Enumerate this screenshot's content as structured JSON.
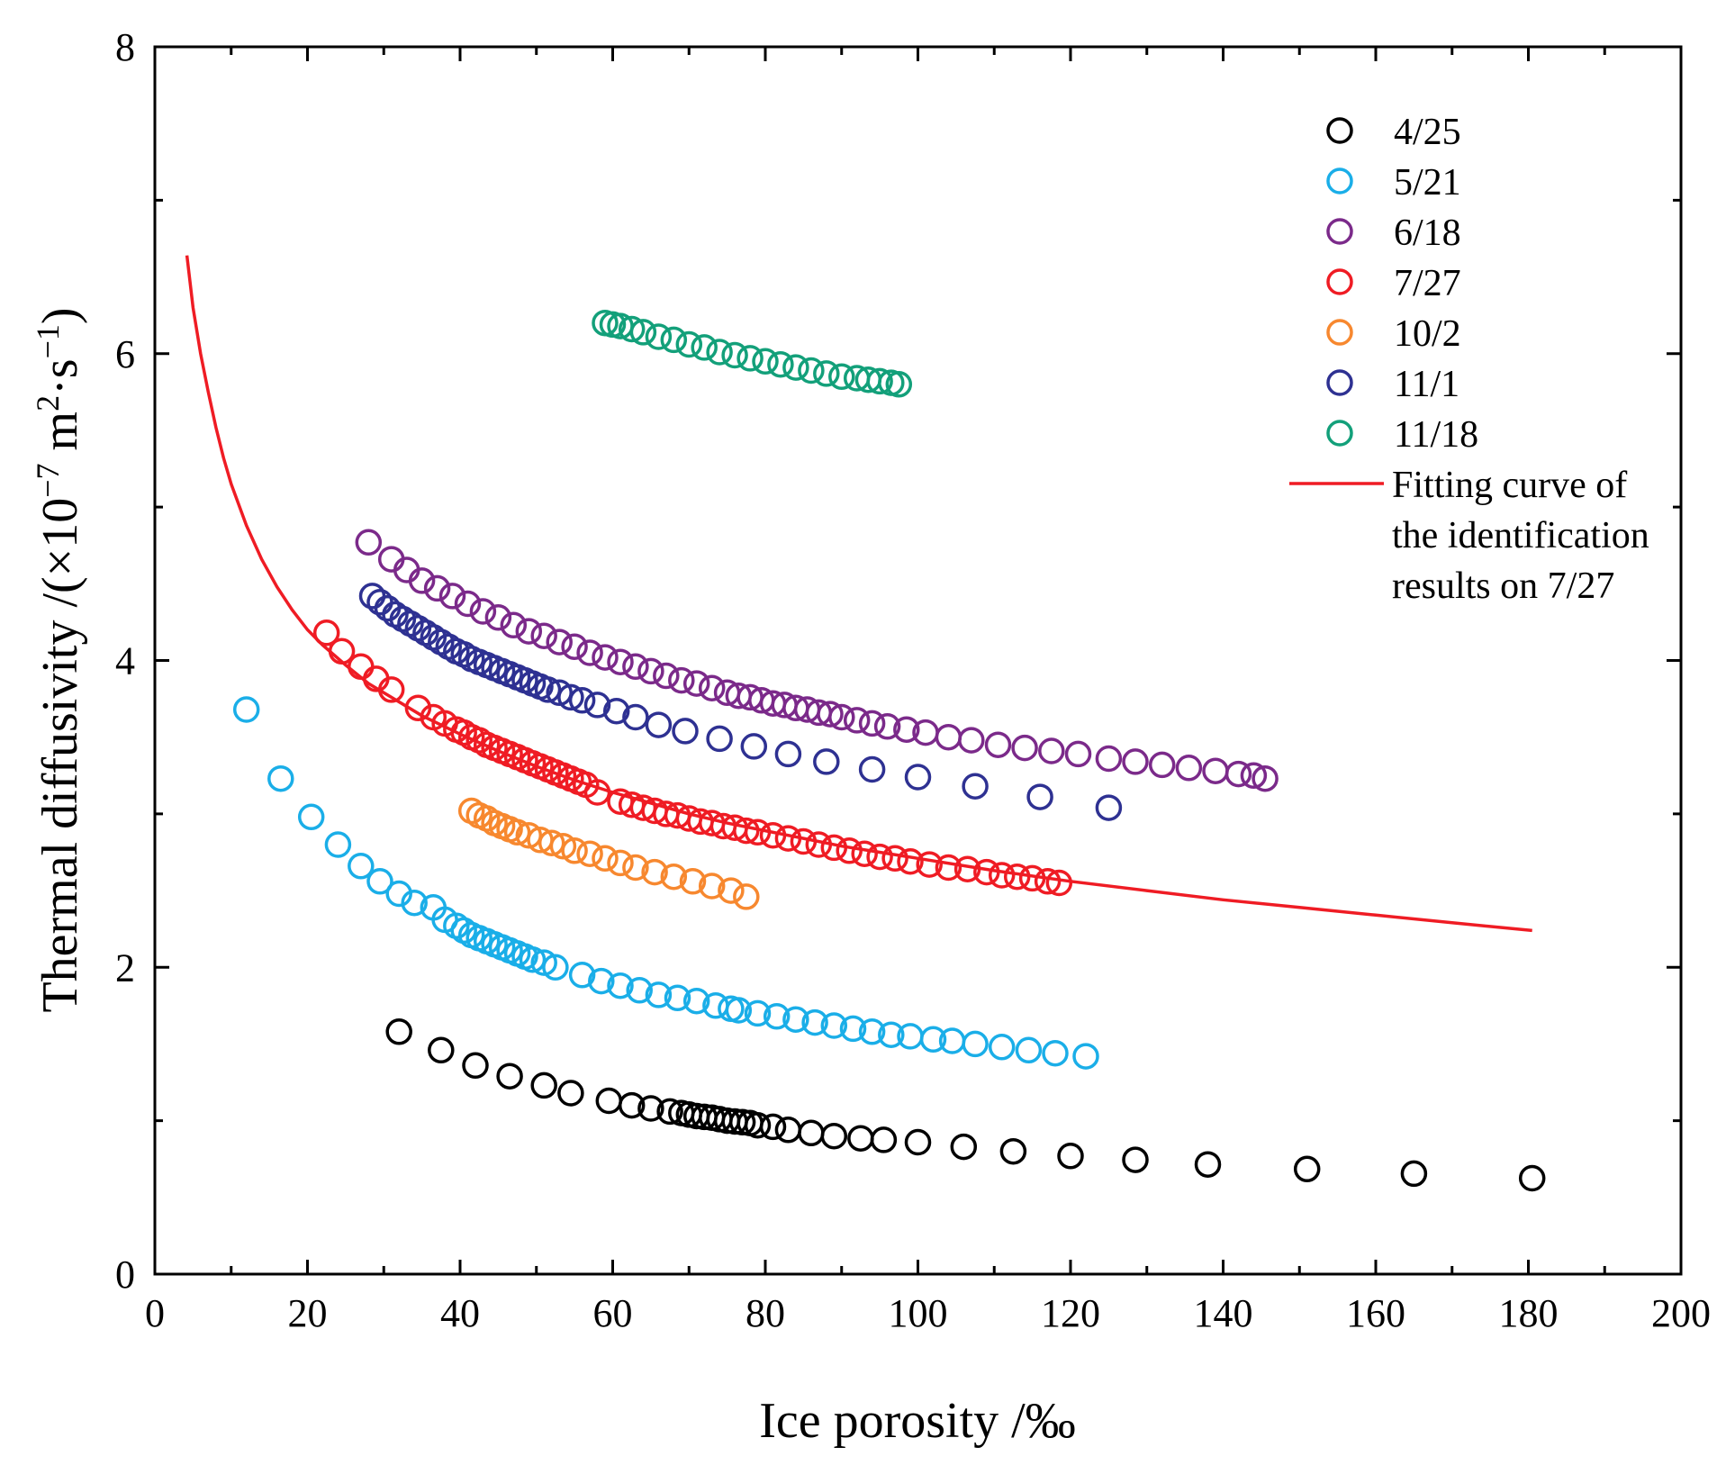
{
  "chart_data": {
    "type": "scatter",
    "title": "",
    "xlabel": "Ice porosity /‰",
    "ylabel_main": "Thermal diffusivity /(×10",
    "ylabel_exp": "−7",
    "ylabel_unit_m": " m",
    "ylabel_exp2": "2",
    "ylabel_tail": "·s",
    "ylabel_exp3": "−1",
    "ylabel_close": ")",
    "xlim": [
      0,
      200
    ],
    "ylim": [
      0,
      8
    ],
    "xticks": [
      0,
      20,
      40,
      60,
      80,
      100,
      120,
      140,
      160,
      180,
      200
    ],
    "yticks": [
      0,
      2,
      4,
      6,
      8
    ],
    "legend_position": "top-right",
    "series": [
      {
        "name": "4/25",
        "color": "#000000",
        "x": [
          32,
          37.5,
          42,
          46.5,
          51,
          54.5,
          59.5,
          62.5,
          65,
          67.5,
          69,
          70,
          71,
          72,
          73,
          74,
          75,
          76,
          77,
          78,
          79,
          81,
          83,
          86,
          89,
          92.5,
          95.5,
          100,
          106,
          112.5,
          120,
          128.5,
          138,
          151,
          165,
          180.5
        ],
        "y": [
          1.58,
          1.46,
          1.36,
          1.29,
          1.23,
          1.18,
          1.13,
          1.1,
          1.08,
          1.06,
          1.05,
          1.04,
          1.03,
          1.025,
          1.02,
          1.01,
          1.0,
          0.995,
          0.99,
          0.985,
          0.97,
          0.96,
          0.94,
          0.92,
          0.9,
          0.885,
          0.875,
          0.86,
          0.83,
          0.8,
          0.77,
          0.745,
          0.715,
          0.685,
          0.655,
          0.625
        ]
      },
      {
        "name": "5/21",
        "color": "#1aaee8",
        "x": [
          12,
          16.5,
          20.5,
          24,
          27,
          29.5,
          32,
          34,
          36.5,
          38,
          39.5,
          40.5,
          41.5,
          42.5,
          43.5,
          44.5,
          45.5,
          46.5,
          47.5,
          48.5,
          49.5,
          51,
          52.5,
          56,
          58.5,
          61,
          63.5,
          66,
          68.5,
          71,
          73.5,
          75.5,
          76.5,
          79,
          81.5,
          84,
          86.5,
          89,
          91.5,
          94,
          96.5,
          99,
          102,
          104.5,
          107.5,
          111,
          114.5,
          118,
          122
        ],
        "y": [
          3.68,
          3.23,
          2.98,
          2.8,
          2.66,
          2.56,
          2.48,
          2.42,
          2.39,
          2.31,
          2.27,
          2.24,
          2.21,
          2.19,
          2.17,
          2.15,
          2.13,
          2.11,
          2.09,
          2.07,
          2.05,
          2.03,
          2.0,
          1.95,
          1.91,
          1.88,
          1.85,
          1.82,
          1.8,
          1.78,
          1.75,
          1.73,
          1.72,
          1.7,
          1.68,
          1.66,
          1.64,
          1.62,
          1.6,
          1.58,
          1.56,
          1.55,
          1.53,
          1.52,
          1.5,
          1.48,
          1.46,
          1.44,
          1.42
        ]
      },
      {
        "name": "6/18",
        "color": "#7b2a8a",
        "x": [
          28,
          31,
          33,
          35,
          37,
          39,
          41,
          43,
          45,
          47,
          49,
          51,
          53,
          55,
          57,
          59,
          61,
          63,
          65,
          67,
          69,
          71,
          73,
          75,
          76.5,
          78,
          79.5,
          81,
          82.5,
          84,
          85.5,
          87,
          88.5,
          90,
          92,
          94,
          96,
          98.5,
          101,
          104,
          107,
          110.5,
          114,
          117.5,
          121,
          125,
          128.5,
          132,
          135.5,
          139,
          142,
          144,
          145.5
        ],
        "y": [
          4.77,
          4.66,
          4.59,
          4.52,
          4.47,
          4.42,
          4.37,
          4.32,
          4.28,
          4.23,
          4.19,
          4.16,
          4.12,
          4.09,
          4.05,
          4.02,
          3.99,
          3.96,
          3.93,
          3.9,
          3.87,
          3.85,
          3.82,
          3.79,
          3.77,
          3.76,
          3.74,
          3.72,
          3.71,
          3.69,
          3.68,
          3.66,
          3.65,
          3.63,
          3.61,
          3.59,
          3.57,
          3.55,
          3.53,
          3.5,
          3.48,
          3.45,
          3.43,
          3.41,
          3.39,
          3.36,
          3.34,
          3.32,
          3.3,
          3.28,
          3.26,
          3.25,
          3.23
        ]
      },
      {
        "name": "7/27",
        "color": "#ef1c24",
        "x": [
          22.5,
          24.5,
          27,
          29,
          31,
          34.5,
          36.5,
          38,
          39.5,
          40.5,
          41.5,
          42.5,
          43.5,
          44.5,
          45.5,
          46.5,
          47.5,
          48.5,
          49.5,
          50.5,
          51.5,
          52.5,
          53.5,
          54.5,
          55.5,
          56.5,
          58,
          61,
          62.5,
          64,
          65.5,
          67,
          68.5,
          70,
          71.5,
          73,
          74.5,
          76,
          77.5,
          79,
          81,
          83,
          85,
          87,
          89,
          91,
          93,
          95,
          97,
          99,
          101.5,
          104,
          106.5,
          109,
          111,
          113,
          115,
          117,
          118.5
        ],
        "y": [
          4.18,
          4.06,
          3.96,
          3.88,
          3.81,
          3.69,
          3.63,
          3.59,
          3.55,
          3.53,
          3.5,
          3.48,
          3.45,
          3.43,
          3.41,
          3.39,
          3.37,
          3.35,
          3.33,
          3.31,
          3.29,
          3.27,
          3.25,
          3.23,
          3.21,
          3.19,
          3.14,
          3.08,
          3.06,
          3.04,
          3.02,
          3.0,
          2.99,
          2.97,
          2.95,
          2.94,
          2.92,
          2.91,
          2.89,
          2.88,
          2.86,
          2.84,
          2.82,
          2.8,
          2.78,
          2.76,
          2.74,
          2.72,
          2.71,
          2.69,
          2.67,
          2.65,
          2.64,
          2.62,
          2.6,
          2.59,
          2.58,
          2.56,
          2.55
        ]
      },
      {
        "name": "10/2",
        "color": "#f7882f",
        "x": [
          41.5,
          42.5,
          43.5,
          44.5,
          45.5,
          46.5,
          47.5,
          49,
          50.5,
          52,
          53.5,
          55,
          57,
          59,
          61,
          63,
          65.5,
          68,
          70.5,
          73,
          75.5,
          77.5
        ],
        "y": [
          3.02,
          2.99,
          2.97,
          2.94,
          2.92,
          2.9,
          2.88,
          2.86,
          2.83,
          2.81,
          2.79,
          2.76,
          2.74,
          2.71,
          2.68,
          2.65,
          2.62,
          2.59,
          2.56,
          2.53,
          2.5,
          2.46
        ]
      },
      {
        "name": "11/1",
        "color": "#2e3192",
        "x": [
          28.5,
          29.5,
          30.5,
          31.5,
          32.5,
          33.5,
          34.5,
          35.5,
          36.5,
          37.5,
          38.5,
          39.5,
          40.5,
          41.5,
          42.5,
          43.5,
          44.5,
          45.5,
          46.5,
          47.5,
          48.5,
          49.5,
          50.5,
          51.5,
          53,
          54.5,
          56,
          58,
          60.5,
          63,
          66,
          69.5,
          74,
          78.5,
          83,
          88,
          94,
          100,
          107.5,
          116,
          125
        ],
        "y": [
          4.42,
          4.38,
          4.34,
          4.3,
          4.27,
          4.24,
          4.21,
          4.18,
          4.15,
          4.12,
          4.09,
          4.06,
          4.04,
          4.01,
          3.99,
          3.97,
          3.95,
          3.93,
          3.91,
          3.89,
          3.87,
          3.85,
          3.83,
          3.81,
          3.79,
          3.76,
          3.74,
          3.71,
          3.67,
          3.63,
          3.58,
          3.54,
          3.49,
          3.44,
          3.39,
          3.34,
          3.29,
          3.24,
          3.18,
          3.11,
          3.04
        ]
      },
      {
        "name": "11/18",
        "color": "#13a07a",
        "x": [
          59,
          60,
          61,
          62.5,
          64,
          66,
          68,
          70,
          72,
          74,
          76,
          78,
          80,
          82,
          84,
          86,
          88,
          90,
          92,
          93.5,
          95,
          96.5,
          97.5
        ],
        "y": [
          6.2,
          6.19,
          6.18,
          6.16,
          6.14,
          6.11,
          6.09,
          6.06,
          6.04,
          6.01,
          5.99,
          5.97,
          5.95,
          5.93,
          5.91,
          5.89,
          5.87,
          5.85,
          5.84,
          5.83,
          5.82,
          5.81,
          5.8
        ]
      }
    ],
    "fit_curve": {
      "name_lines": [
        "Fitting curve of",
        "the identification",
        "results on 7/27"
      ],
      "color": "#ef1c24",
      "x": [
        4.2,
        5,
        6,
        7,
        8,
        9,
        10,
        12,
        14,
        16,
        18,
        20,
        22,
        25,
        28,
        31,
        35,
        40,
        45,
        50,
        55,
        60,
        65,
        70,
        75,
        80,
        85,
        90,
        95,
        100,
        110,
        120,
        130,
        140,
        150,
        160,
        170,
        180.5
      ],
      "y": [
        6.64,
        6.3,
        6.0,
        5.75,
        5.52,
        5.32,
        5.15,
        4.88,
        4.66,
        4.48,
        4.33,
        4.2,
        4.1,
        3.97,
        3.85,
        3.76,
        3.64,
        3.52,
        3.41,
        3.31,
        3.22,
        3.14,
        3.07,
        3.0,
        2.94,
        2.89,
        2.84,
        2.79,
        2.75,
        2.71,
        2.63,
        2.56,
        2.5,
        2.44,
        2.39,
        2.34,
        2.29,
        2.24
      ]
    }
  }
}
